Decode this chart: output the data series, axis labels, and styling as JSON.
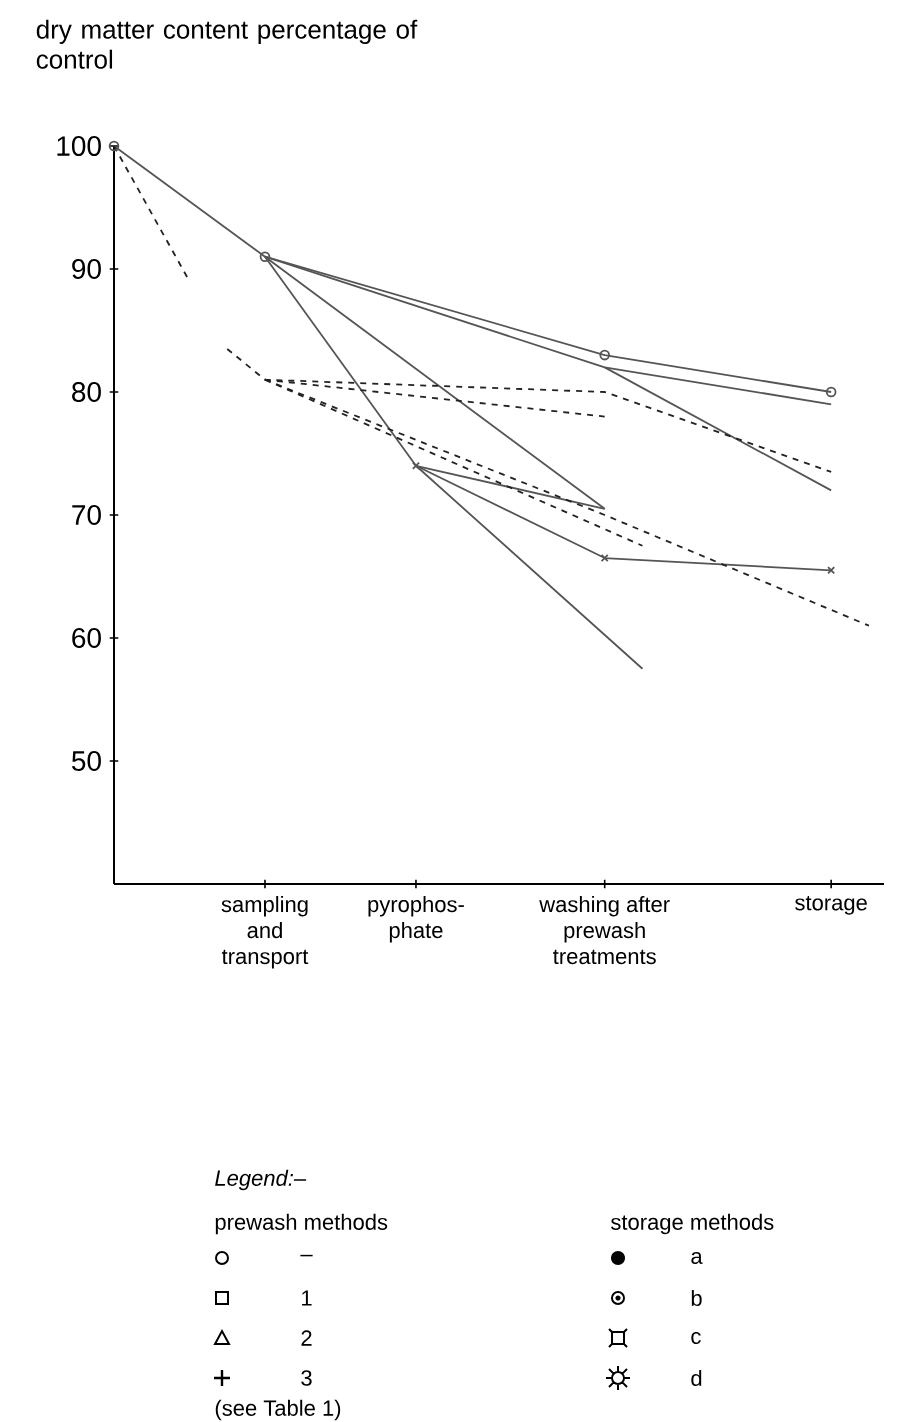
{
  "chart_data": {
    "type": "line",
    "ylabel": "dry matter content percentage of control",
    "categories": [
      null,
      null,
      null,
      null,
      "sampling and transport",
      null,
      null,
      null,
      "pyrophos-phate",
      null,
      null,
      null,
      null,
      "washing after prewash treatments",
      null,
      null,
      null,
      null,
      null,
      "storage",
      null
    ],
    "ylim": [
      40,
      100
    ],
    "yticks": [
      50,
      60,
      70,
      80,
      90,
      100
    ],
    "series": [
      {
        "color": "#555555",
        "line_style": "solid",
        "marker": "circle",
        "values": [
          100,
          null,
          null,
          null,
          91,
          null,
          null,
          null,
          null,
          null,
          null,
          null,
          null,
          83,
          null,
          null,
          null,
          null,
          null,
          80,
          null
        ]
      },
      {
        "color": "#555555",
        "line_style": "solid",
        "marker": "none",
        "values": [
          null,
          null,
          null,
          null,
          91,
          null,
          null,
          null,
          null,
          null,
          null,
          null,
          null,
          82,
          null,
          null,
          null,
          null,
          null,
          79,
          null
        ]
      },
      {
        "color": "#555555",
        "line_style": "solid",
        "marker": "none",
        "values": [
          null,
          null,
          null,
          null,
          null,
          null,
          null,
          null,
          null,
          null,
          null,
          null,
          null,
          82,
          null,
          null,
          null,
          null,
          null,
          72,
          null
        ]
      },
      {
        "color": "#555555",
        "line_style": "solid",
        "marker": "none",
        "values": [
          null,
          null,
          null,
          null,
          91,
          null,
          null,
          null,
          74,
          null,
          null,
          null,
          null,
          null,
          57.5,
          null,
          null,
          null,
          null,
          null,
          null
        ]
      },
      {
        "color": "#555555",
        "line_style": "solid",
        "marker": "none",
        "values": [
          null,
          null,
          null,
          null,
          91,
          null,
          null,
          null,
          null,
          null,
          null,
          null,
          null,
          70.5,
          null,
          null,
          null,
          null,
          null,
          null,
          null
        ]
      },
      {
        "color": "#555555",
        "line_style": "solid",
        "marker": "cross",
        "values": [
          null,
          null,
          null,
          null,
          null,
          null,
          null,
          null,
          74,
          null,
          null,
          null,
          null,
          66.5,
          null,
          null,
          null,
          null,
          null,
          65.5,
          null
        ]
      },
      {
        "color": "#555555",
        "line_style": "solid",
        "marker": "none",
        "values": [
          null,
          null,
          null,
          null,
          null,
          null,
          null,
          null,
          74,
          null,
          null,
          null,
          null,
          70.5,
          null,
          null,
          null,
          null,
          null,
          null,
          null
        ]
      },
      {
        "color": "#222222",
        "line_style": "dashed",
        "marker": "none",
        "values": [
          null,
          null,
          null,
          83.5,
          81,
          null,
          null,
          null,
          null,
          null,
          null,
          null,
          null,
          80,
          null,
          null,
          null,
          null,
          null,
          73.5,
          null
        ]
      },
      {
        "color": "#222222",
        "line_style": "dashed",
        "marker": "none",
        "values": [
          null,
          null,
          null,
          null,
          81,
          null,
          null,
          null,
          null,
          null,
          null,
          null,
          null,
          78,
          null,
          null,
          null,
          null,
          null,
          null,
          null
        ]
      },
      {
        "color": "#222222",
        "line_style": "dashed",
        "marker": "none",
        "values": [
          null,
          null,
          null,
          null,
          81,
          null,
          null,
          null,
          null,
          null,
          null,
          null,
          null,
          70,
          null,
          null,
          null,
          null,
          null,
          null,
          61
        ]
      },
      {
        "color": "#222222",
        "line_style": "dashed",
        "marker": "none",
        "values": [
          null,
          null,
          null,
          null,
          81,
          null,
          null,
          null,
          null,
          null,
          null,
          null,
          null,
          null,
          67.5,
          null,
          null,
          null,
          null,
          null,
          null
        ]
      },
      {
        "color": "#222222",
        "line_style": "dashed",
        "marker": "none",
        "values": [
          100,
          null,
          89,
          null,
          null,
          null,
          null,
          null,
          null,
          null,
          null,
          null,
          null,
          null,
          null,
          null,
          null,
          null,
          null,
          null,
          null
        ]
      }
    ],
    "annotations": [
      "Legend:–",
      "prewash methods",
      "–",
      "1",
      "2",
      "3",
      "(see Table 1)",
      "storage methods",
      "a",
      "b",
      "c",
      "d"
    ]
  }
}
